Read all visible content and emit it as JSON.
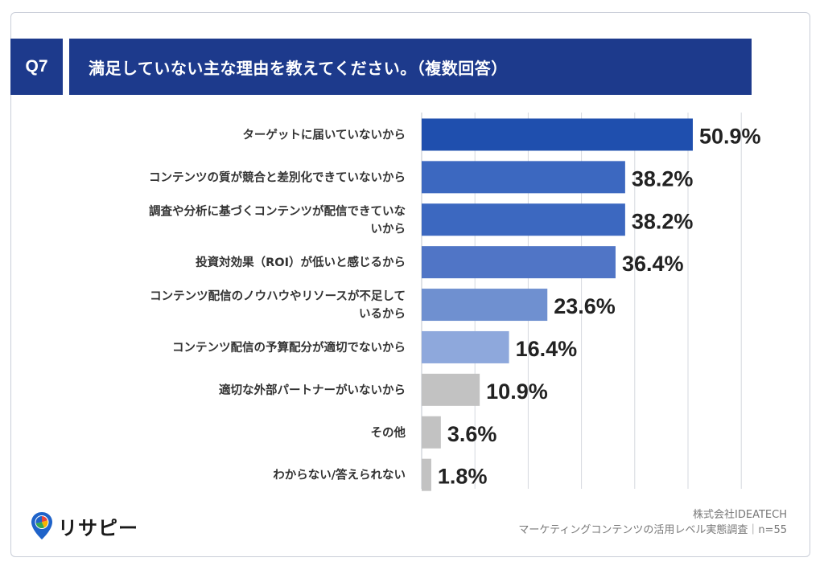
{
  "header": {
    "question_no": "Q7",
    "title": "満足していない主な理由を教えてください。（複数回答）"
  },
  "chart_data": {
    "type": "bar",
    "orientation": "horizontal",
    "categories": [
      [
        "ターゲットに届いていないから"
      ],
      [
        "コンテンツの質が競合と差別化できていないから"
      ],
      [
        "調査や分析に基づくコンテンツが配信できていな",
        "いから"
      ],
      [
        "投資対効果（ROI）が低いと感じるから"
      ],
      [
        "コンテンツ配信のノウハウやリソースが不足して",
        "いるから"
      ],
      [
        "コンテンツ配信の予算配分が適切でないから"
      ],
      [
        "適切な外部パートナーがいないから"
      ],
      [
        "その他"
      ],
      [
        "わからない/答えられない"
      ]
    ],
    "values": [
      50.9,
      38.2,
      38.2,
      36.4,
      23.6,
      16.4,
      10.9,
      3.6,
      1.8
    ],
    "value_labels": [
      "50.9%",
      "38.2%",
      "38.2%",
      "36.4%",
      "23.6%",
      "16.4%",
      "10.9%",
      "3.6%",
      "1.8%"
    ],
    "bar_colors": [
      "#1f4fae",
      "#3c68c0",
      "#3c68c0",
      "#5075c6",
      "#6f90d0",
      "#8ea8dc",
      "#c2c2c2",
      "#c2c2c2",
      "#c2c2c2"
    ],
    "xlim": [
      0,
      60
    ],
    "grid": true
  },
  "logo": {
    "text": "リサピー"
  },
  "footer": {
    "company": "株式会社IDEATECH",
    "survey": "マーケティングコンテンツの活用レベル実態調査｜n=55"
  }
}
